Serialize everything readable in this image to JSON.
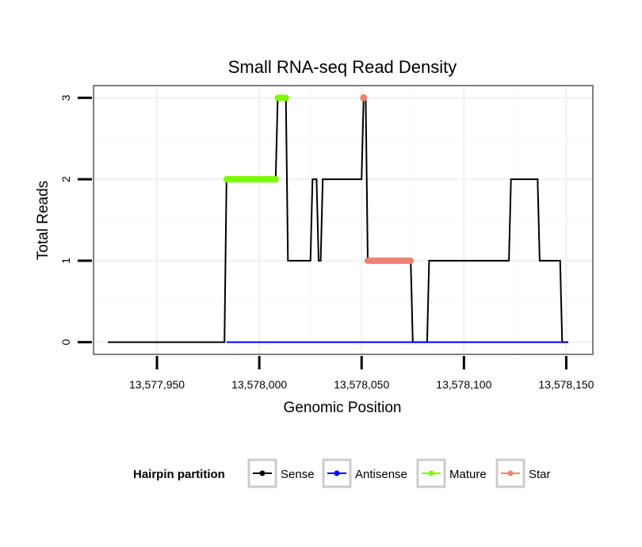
{
  "chart_data": {
    "type": "line",
    "title": "Small RNA-seq Read Density",
    "xlabel": "Genomic Position",
    "ylabel": "Total Reads",
    "xlim": [
      13577919,
      13578163
    ],
    "ylim": [
      -0.15,
      3.15
    ],
    "x_ticks": [
      13577950,
      13578000,
      13578050,
      13578100,
      13578150
    ],
    "x_tick_labels": [
      "13,577,950",
      "13,578,000",
      "13,578,050",
      "13,578,100",
      "13,578,150"
    ],
    "y_ticks": [
      0,
      1,
      2,
      3
    ],
    "y_tick_labels": [
      "0",
      "1",
      "2",
      "3"
    ],
    "grid": true,
    "legend": {
      "title": "Hairpin partition",
      "position": "bottom",
      "entries": [
        {
          "name": "Sense",
          "color": "#000000"
        },
        {
          "name": "Antisense",
          "color": "#0000ff"
        },
        {
          "name": "Mature",
          "color": "#7cfc00"
        },
        {
          "name": "Star",
          "color": "#f08070"
        }
      ]
    },
    "series": [
      {
        "name": "Sense",
        "color": "#000000",
        "style": "line",
        "x": [
          13577926,
          13577983,
          13577984,
          13578008,
          13578009,
          13578013,
          13578014,
          13578025,
          13578026,
          13578028,
          13578029,
          13578030,
          13578031,
          13578050,
          13578051,
          13578052,
          13578053,
          13578074,
          13578075,
          13578082,
          13578083,
          13578122,
          13578123,
          13578136,
          13578137,
          13578147,
          13578148,
          13578151
        ],
        "y": [
          0,
          0,
          2,
          2,
          3,
          3,
          1,
          1,
          2,
          2,
          1,
          1,
          2,
          2,
          3,
          3,
          1,
          1,
          0,
          0,
          1,
          1,
          2,
          2,
          1,
          1,
          0,
          0
        ]
      },
      {
        "name": "Antisense",
        "color": "#0000ff",
        "style": "line",
        "x": [
          13577984,
          13578150
        ],
        "y": [
          0,
          0
        ]
      },
      {
        "name": "Mature",
        "color": "#7cfc00",
        "style": "points",
        "segments": [
          {
            "x": [
              13577984,
              13578008
            ],
            "y": 2
          },
          {
            "x": [
              13578009,
              13578013
            ],
            "y": 3
          }
        ]
      },
      {
        "name": "Star",
        "color": "#f08070",
        "style": "points",
        "segments": [
          {
            "x": [
              13578051,
              13578051
            ],
            "y": 3
          },
          {
            "x": [
              13578053,
              13578074
            ],
            "y": 1
          }
        ]
      }
    ]
  }
}
